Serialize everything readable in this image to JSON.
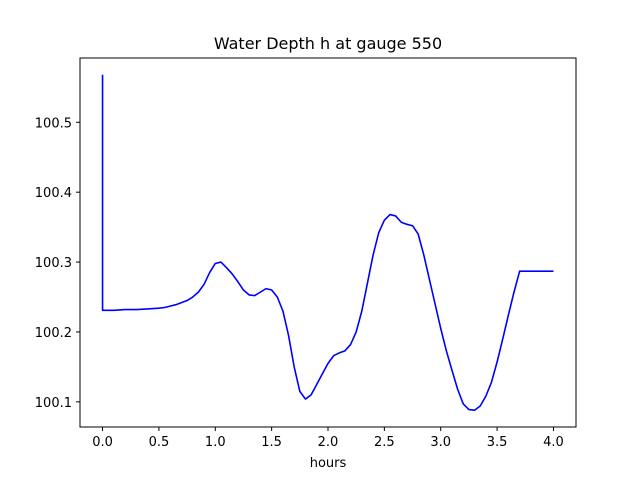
{
  "chart_data": {
    "type": "line",
    "title": "Water Depth h at gauge 550",
    "xlabel": "hours",
    "ylabel": "",
    "xlim": [
      -0.2,
      4.2
    ],
    "ylim": [
      100.064,
      100.592
    ],
    "grid": false,
    "x_ticks": [
      0.0,
      0.5,
      1.0,
      1.5,
      2.0,
      2.5,
      3.0,
      3.5,
      4.0
    ],
    "x_tick_labels": [
      "0.0",
      "0.5",
      "1.0",
      "1.5",
      "2.0",
      "2.5",
      "3.0",
      "3.5",
      "4.0"
    ],
    "y_ticks": [
      100.1,
      100.2,
      100.3,
      100.4,
      100.5
    ],
    "y_tick_labels": [
      "100.1",
      "100.2",
      "100.3",
      "100.4",
      "100.5"
    ],
    "line_color": "#0000ff",
    "series": [
      {
        "values_x": [
          0.0,
          0.0,
          0.0,
          0.1,
          0.2,
          0.3,
          0.4,
          0.5,
          0.55,
          0.6,
          0.65,
          0.7,
          0.75,
          0.8,
          0.85,
          0.9,
          0.95,
          1.0,
          1.05,
          1.1,
          1.15,
          1.2,
          1.25,
          1.3,
          1.35,
          1.4,
          1.45,
          1.5,
          1.55,
          1.6,
          1.65,
          1.7,
          1.75,
          1.8,
          1.85,
          1.9,
          1.95,
          2.0,
          2.05,
          2.1,
          2.15,
          2.2,
          2.25,
          2.3,
          2.35,
          2.4,
          2.45,
          2.5,
          2.55,
          2.6,
          2.65,
          2.7,
          2.75,
          2.8,
          2.85,
          2.9,
          2.95,
          3.0,
          3.05,
          3.1,
          3.15,
          3.2,
          3.25,
          3.3,
          3.35,
          3.4,
          3.45,
          3.5,
          3.55,
          3.6,
          3.65,
          3.7,
          3.75,
          3.8,
          3.85,
          3.9,
          3.95,
          4.0
        ],
        "values": [
          100.568,
          100.568,
          100.231,
          100.231,
          100.232,
          100.232,
          100.233,
          100.234,
          100.235,
          100.237,
          100.239,
          100.242,
          100.245,
          100.25,
          100.257,
          100.268,
          100.285,
          100.298,
          100.3,
          100.292,
          100.283,
          100.272,
          100.26,
          100.253,
          100.252,
          100.257,
          100.262,
          100.26,
          100.25,
          100.23,
          100.195,
          100.15,
          100.115,
          100.104,
          100.11,
          100.125,
          100.14,
          100.155,
          100.166,
          100.17,
          100.173,
          100.182,
          100.2,
          100.23,
          100.27,
          100.31,
          100.342,
          100.36,
          100.368,
          100.366,
          100.357,
          100.354,
          100.352,
          100.34,
          100.31,
          100.275,
          100.24,
          100.205,
          100.173,
          100.145,
          100.118,
          100.097,
          100.089,
          100.088,
          100.094,
          100.108,
          100.128,
          100.157,
          100.19,
          100.224,
          100.257,
          100.287,
          100.287,
          100.287,
          100.287,
          100.287,
          100.287,
          100.287
        ]
      }
    ]
  }
}
